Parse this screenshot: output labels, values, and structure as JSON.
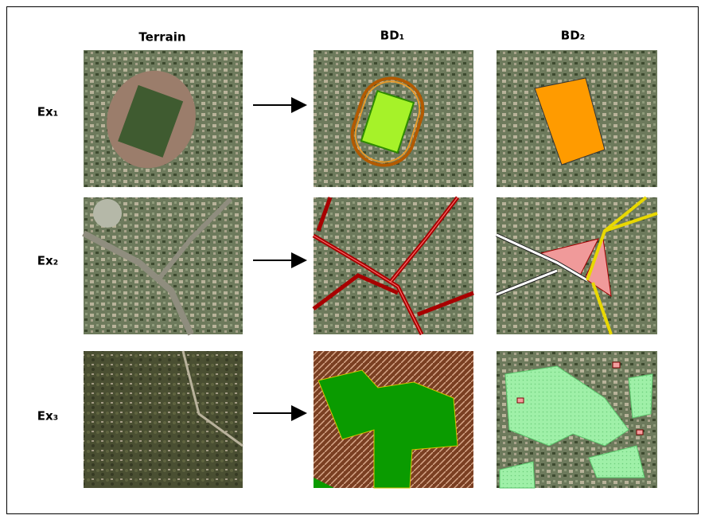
{
  "columns": [
    "Terrain",
    "BD₁",
    "BD₂"
  ],
  "rows": [
    "Ex₁",
    "Ex₂",
    "Ex₃"
  ]
}
